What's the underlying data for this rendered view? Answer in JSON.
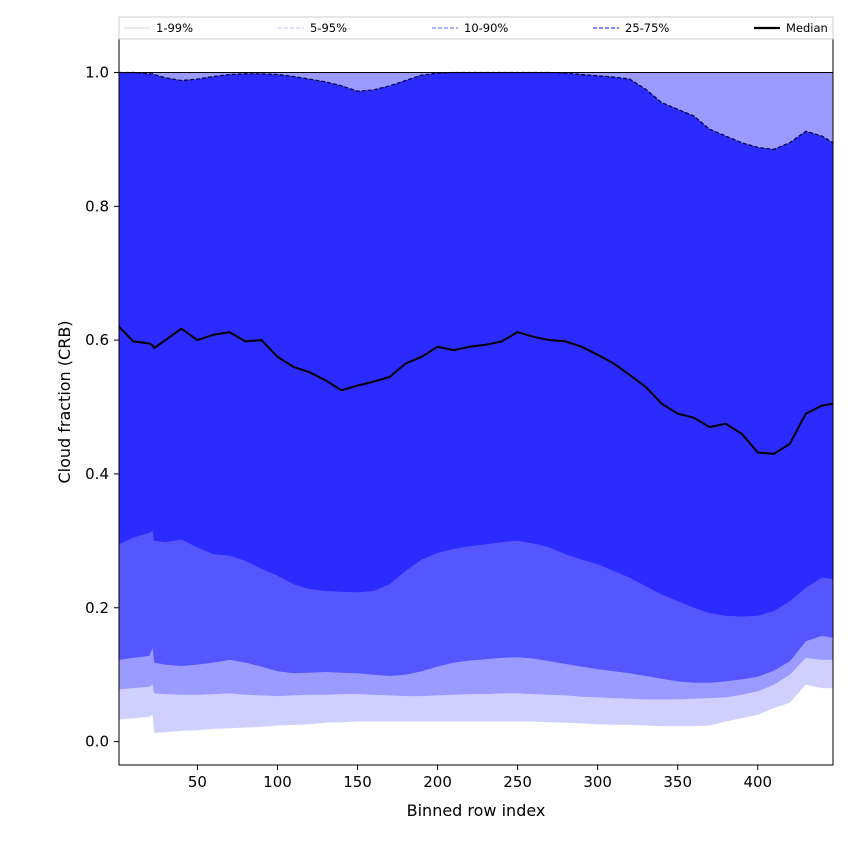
{
  "chart_data": {
    "type": "area",
    "title": "",
    "xlabel": "Binned row index",
    "ylabel": "Cloud fraction (CRB)",
    "xlim": [
      1,
      447
    ],
    "ylim": [
      -0.035,
      1.05
    ],
    "xticks": [
      50,
      100,
      150,
      200,
      250,
      300,
      350,
      400
    ],
    "yticks": [
      0.0,
      0.2,
      0.4,
      0.6,
      0.8,
      1.0
    ],
    "xtick_labels": [
      "50",
      "100",
      "150",
      "200",
      "250",
      "300",
      "350",
      "400"
    ],
    "ytick_labels": [
      "0.0",
      "0.2",
      "0.4",
      "0.6",
      "0.8",
      "1.0"
    ],
    "grid": false,
    "legend_position": "top",
    "colors": {
      "band_1_99": "#d0d0ff",
      "band_5_95": "#9b9bff",
      "band_10_90": "#5656ff",
      "band_25_75": "#2b2bff",
      "median": "#000000"
    },
    "legend": [
      {
        "label": "1-99%",
        "style": "thin-solid",
        "color": "#c8c8c8"
      },
      {
        "label": "5-95%",
        "style": "thin-dashed",
        "color": "#b0b0e0"
      },
      {
        "label": "10-90%",
        "style": "dashed",
        "color": "#8080ff"
      },
      {
        "label": "25-75%",
        "style": "dashed",
        "color": "#4040ff"
      },
      {
        "label": "Median",
        "style": "solid",
        "color": "#000000"
      }
    ],
    "x": [
      1,
      10,
      20,
      22,
      23,
      30,
      40,
      50,
      60,
      70,
      80,
      90,
      100,
      110,
      120,
      130,
      140,
      150,
      160,
      170,
      180,
      190,
      200,
      210,
      220,
      230,
      240,
      250,
      260,
      270,
      280,
      290,
      300,
      310,
      320,
      330,
      340,
      350,
      360,
      370,
      380,
      390,
      400,
      410,
      420,
      430,
      440,
      447
    ],
    "series": [
      {
        "name": "1-99%",
        "role": "band",
        "color": "#d0d0ff",
        "lower": [
          0.033,
          0.035,
          0.037,
          0.04,
          0.013,
          0.014,
          0.016,
          0.017,
          0.019,
          0.02,
          0.021,
          0.022,
          0.024,
          0.025,
          0.026,
          0.028,
          0.029,
          0.03,
          0.03,
          0.03,
          0.03,
          0.03,
          0.03,
          0.03,
          0.03,
          0.03,
          0.03,
          0.03,
          0.03,
          0.029,
          0.028,
          0.027,
          0.026,
          0.025,
          0.025,
          0.024,
          0.023,
          0.023,
          0.023,
          0.024,
          0.03,
          0.035,
          0.04,
          0.05,
          0.058,
          0.085,
          0.08,
          0.08
        ],
        "upper": [
          1.0,
          1.0,
          1.0,
          1.0,
          1.0,
          1.0,
          1.0,
          1.0,
          1.0,
          1.0,
          1.0,
          1.0,
          1.0,
          1.0,
          1.0,
          1.0,
          1.0,
          1.0,
          1.0,
          1.0,
          1.0,
          1.0,
          1.0,
          1.0,
          1.0,
          1.0,
          1.0,
          1.0,
          1.0,
          1.0,
          1.0,
          1.0,
          1.0,
          1.0,
          1.0,
          1.0,
          1.0,
          1.0,
          1.0,
          1.0,
          1.0,
          1.0,
          1.0,
          1.0,
          1.0,
          1.0,
          1.0,
          1.0
        ]
      },
      {
        "name": "5-95%",
        "role": "band",
        "color": "#9b9bff",
        "lower": [
          0.078,
          0.08,
          0.082,
          0.085,
          0.072,
          0.071,
          0.07,
          0.07,
          0.071,
          0.072,
          0.07,
          0.069,
          0.068,
          0.069,
          0.07,
          0.07,
          0.071,
          0.071,
          0.07,
          0.069,
          0.068,
          0.068,
          0.069,
          0.07,
          0.071,
          0.071,
          0.072,
          0.072,
          0.071,
          0.07,
          0.069,
          0.067,
          0.066,
          0.065,
          0.064,
          0.063,
          0.063,
          0.063,
          0.064,
          0.065,
          0.066,
          0.07,
          0.075,
          0.085,
          0.1,
          0.125,
          0.122,
          0.122
        ],
        "upper": [
          1.0,
          1.0,
          1.0,
          1.0,
          1.0,
          1.0,
          1.0,
          1.0,
          1.0,
          1.0,
          1.0,
          1.0,
          1.0,
          1.0,
          1.0,
          1.0,
          1.0,
          1.0,
          1.0,
          1.0,
          1.0,
          1.0,
          1.0,
          1.0,
          1.0,
          1.0,
          1.0,
          1.0,
          1.0,
          1.0,
          1.0,
          1.0,
          1.0,
          1.0,
          1.0,
          1.0,
          1.0,
          1.0,
          1.0,
          1.0,
          1.0,
          1.0,
          1.0,
          1.0,
          1.0,
          1.0,
          1.0,
          1.0
        ]
      },
      {
        "name": "10-90%",
        "role": "band",
        "color": "#5656ff",
        "lower": [
          0.122,
          0.125,
          0.128,
          0.14,
          0.118,
          0.115,
          0.113,
          0.115,
          0.118,
          0.122,
          0.118,
          0.112,
          0.105,
          0.102,
          0.103,
          0.104,
          0.103,
          0.102,
          0.1,
          0.098,
          0.1,
          0.105,
          0.112,
          0.118,
          0.121,
          0.123,
          0.125,
          0.126,
          0.124,
          0.12,
          0.116,
          0.112,
          0.108,
          0.105,
          0.102,
          0.098,
          0.094,
          0.09,
          0.088,
          0.088,
          0.09,
          0.093,
          0.097,
          0.106,
          0.12,
          0.15,
          0.158,
          0.155
        ],
        "upper": [
          1.0,
          1.0,
          0.998,
          0.998,
          0.997,
          0.992,
          0.988,
          0.99,
          0.994,
          0.997,
          0.998,
          0.998,
          0.997,
          0.994,
          0.99,
          0.986,
          0.98,
          0.972,
          0.974,
          0.98,
          0.988,
          0.996,
          0.999,
          1.0,
          1.0,
          1.0,
          1.0,
          1.0,
          1.0,
          1.0,
          0.999,
          0.997,
          0.995,
          0.993,
          0.99,
          0.975,
          0.955,
          0.945,
          0.935,
          0.915,
          0.905,
          0.895,
          0.888,
          0.885,
          0.895,
          0.912,
          0.905,
          0.895
        ]
      },
      {
        "name": "25-75%",
        "role": "band",
        "color": "#2b2bff",
        "lower": [
          0.295,
          0.305,
          0.312,
          0.315,
          0.3,
          0.298,
          0.302,
          0.29,
          0.28,
          0.278,
          0.27,
          0.258,
          0.248,
          0.235,
          0.228,
          0.225,
          0.224,
          0.223,
          0.225,
          0.235,
          0.255,
          0.272,
          0.282,
          0.288,
          0.292,
          0.295,
          0.298,
          0.3,
          0.296,
          0.29,
          0.28,
          0.272,
          0.265,
          0.255,
          0.245,
          0.232,
          0.22,
          0.21,
          0.2,
          0.192,
          0.188,
          0.187,
          0.188,
          0.195,
          0.21,
          0.23,
          0.245,
          0.243
        ],
        "upper": [
          1.0,
          1.0,
          0.998,
          0.998,
          0.997,
          0.992,
          0.988,
          0.99,
          0.994,
          0.997,
          0.998,
          0.998,
          0.997,
          0.994,
          0.99,
          0.986,
          0.98,
          0.972,
          0.974,
          0.98,
          0.988,
          0.996,
          0.999,
          1.0,
          1.0,
          1.0,
          1.0,
          1.0,
          1.0,
          1.0,
          0.999,
          0.997,
          0.995,
          0.993,
          0.99,
          0.975,
          0.955,
          0.945,
          0.935,
          0.915,
          0.905,
          0.895,
          0.888,
          0.885,
          0.895,
          0.912,
          0.905,
          0.895
        ]
      },
      {
        "name": "Median",
        "role": "line",
        "color": "#000000",
        "values": [
          0.62,
          0.598,
          0.595,
          0.592,
          0.588,
          0.6,
          0.617,
          0.6,
          0.608,
          0.612,
          0.598,
          0.6,
          0.575,
          0.56,
          0.552,
          0.54,
          0.525,
          0.532,
          0.538,
          0.545,
          0.565,
          0.575,
          0.59,
          0.585,
          0.59,
          0.593,
          0.598,
          0.612,
          0.605,
          0.6,
          0.598,
          0.59,
          0.578,
          0.565,
          0.548,
          0.53,
          0.505,
          0.49,
          0.484,
          0.47,
          0.475,
          0.46,
          0.432,
          0.43,
          0.445,
          0.49,
          0.502,
          0.505
        ]
      }
    ]
  }
}
